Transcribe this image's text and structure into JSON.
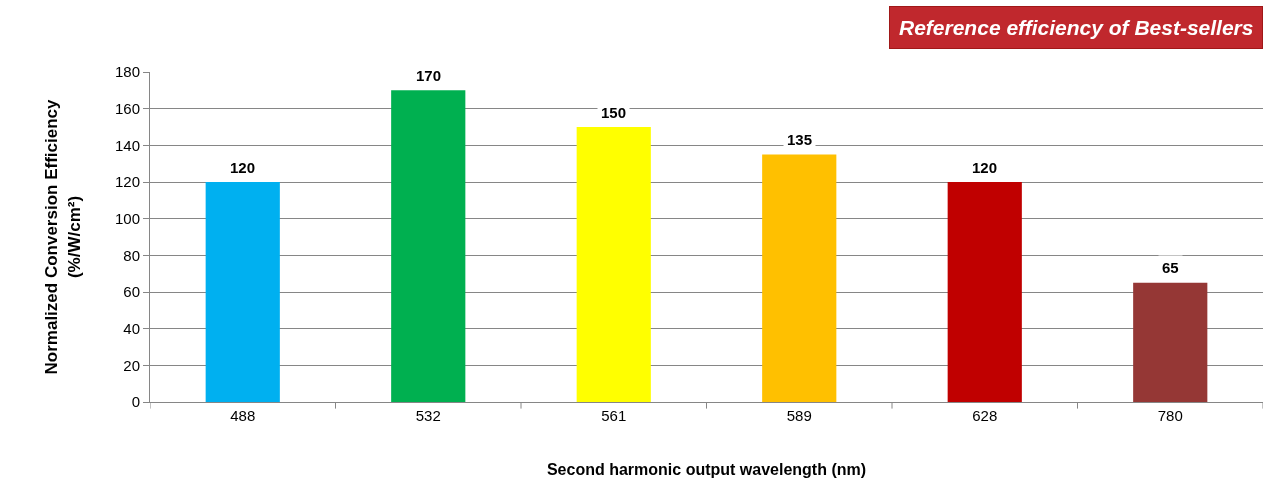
{
  "chart_data": {
    "type": "bar",
    "title": "Reference efficiency of Best-sellers",
    "xlabel": "Second harmonic output wavelength (nm)",
    "ylabel": "Normalized Conversion Efficiency\n(%/W/cm²)",
    "categories": [
      "488",
      "532",
      "561",
      "589",
      "628",
      "780"
    ],
    "values": [
      120,
      170,
      150,
      135,
      120,
      65
    ],
    "colors": [
      "#00b0f0",
      "#00b050",
      "#ffff00",
      "#ffc000",
      "#c00000",
      "#953735"
    ],
    "ylim": [
      0,
      180
    ],
    "yticks": [
      0,
      20,
      40,
      60,
      80,
      100,
      120,
      140,
      160,
      180
    ],
    "grid": "y",
    "data_labels": true,
    "legend": false
  }
}
